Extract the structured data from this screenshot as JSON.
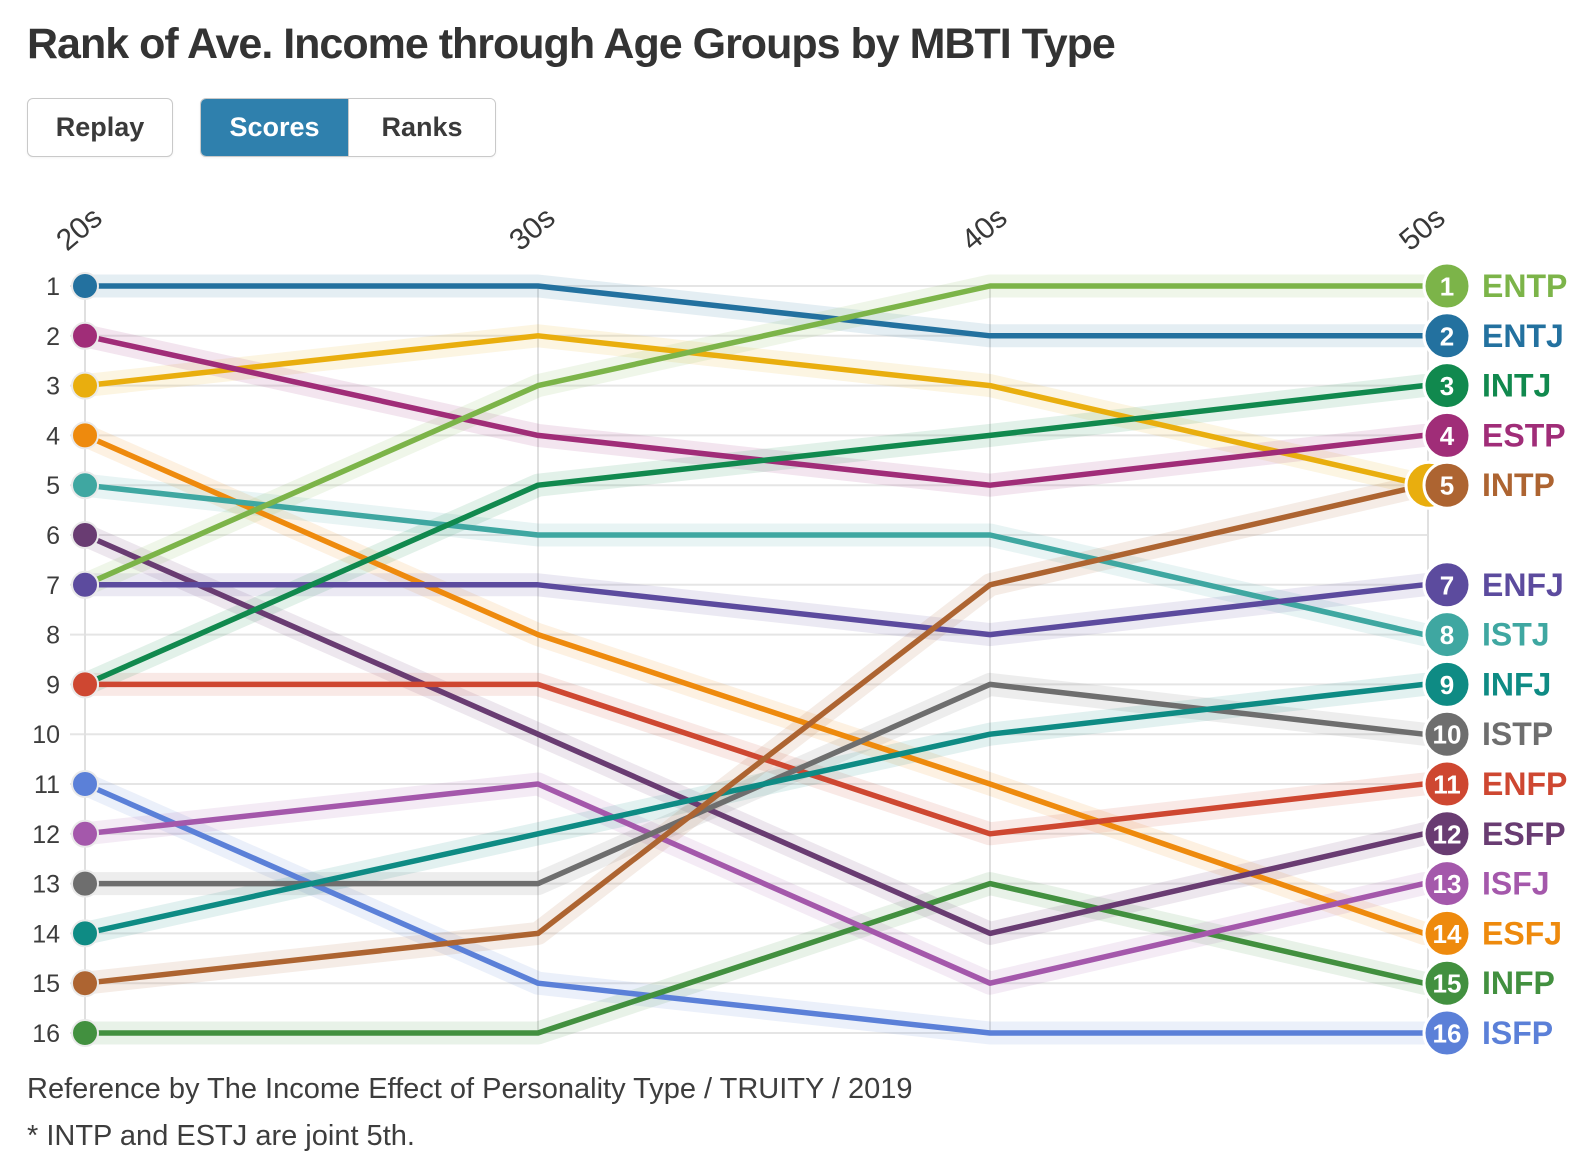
{
  "title": "Rank of Ave. Income through Age Groups by MBTI Type",
  "controls": {
    "replay": "Replay",
    "scores": "Scores",
    "ranks": "Ranks",
    "active_view": "Scores"
  },
  "footnote": {
    "reference": "Reference by The Income Effect of Personality Type / TRUITY / 2019",
    "note": "* INTP and ESTJ are joint 5th."
  },
  "chart_data": {
    "type": "line",
    "subtype": "bump-rank",
    "x": [
      "20s",
      "30s",
      "40s",
      "50s"
    ],
    "rank_axis": {
      "min": 1,
      "max": 16,
      "ticks": [
        1,
        2,
        3,
        4,
        5,
        6,
        7,
        8,
        9,
        10,
        11,
        12,
        13,
        14,
        15,
        16
      ]
    },
    "legend_position": "right",
    "grid": true,
    "series": [
      {
        "name": "ENTP",
        "color": "#7cb449",
        "ranks": [
          7,
          3,
          1,
          1
        ]
      },
      {
        "name": "ENTJ",
        "color": "#23719f",
        "ranks": [
          1,
          1,
          2,
          2
        ]
      },
      {
        "name": "INTJ",
        "color": "#11894e",
        "ranks": [
          9,
          5,
          4,
          3
        ]
      },
      {
        "name": "ESTP",
        "color": "#a02d78",
        "ranks": [
          2,
          4,
          5,
          4
        ]
      },
      {
        "name": "INTP",
        "color": "#ad6431",
        "ranks": [
          15,
          14,
          7,
          5
        ]
      },
      {
        "name": "ESTJ",
        "color": "#e9ae0e",
        "ranks": [
          3,
          2,
          3,
          5
        ],
        "badge_hidden_behind": "INTP"
      },
      {
        "name": "ENFJ",
        "color": "#5c4b9e",
        "ranks": [
          7,
          7,
          8,
          7
        ]
      },
      {
        "name": "ISTJ",
        "color": "#3fa7a1",
        "ranks": [
          5,
          6,
          6,
          8
        ]
      },
      {
        "name": "INFJ",
        "color": "#0e8b84",
        "ranks": [
          14,
          12,
          10,
          9
        ]
      },
      {
        "name": "ISTP",
        "color": "#6e6e6e",
        "ranks": [
          13,
          13,
          9,
          10
        ]
      },
      {
        "name": "ENFP",
        "color": "#ce4731",
        "ranks": [
          9,
          9,
          12,
          11
        ]
      },
      {
        "name": "ESFP",
        "color": "#693c72",
        "ranks": [
          6,
          10,
          14,
          12
        ]
      },
      {
        "name": "ISFJ",
        "color": "#a458ab",
        "ranks": [
          12,
          11,
          15,
          13
        ]
      },
      {
        "name": "ESFJ",
        "color": "#ee8a0d",
        "ranks": [
          4,
          8,
          11,
          14
        ]
      },
      {
        "name": "INFP",
        "color": "#42903f",
        "ranks": [
          16,
          16,
          13,
          15
        ]
      },
      {
        "name": "ISFP",
        "color": "#5b80d8",
        "ranks": [
          11,
          15,
          16,
          16
        ]
      }
    ],
    "ties": [
      {
        "age": "20s",
        "rank": 7,
        "types": [
          "ENTP",
          "ENFJ"
        ]
      },
      {
        "age": "20s",
        "rank": 9,
        "types": [
          "INTJ",
          "ENFP"
        ]
      },
      {
        "age": "50s",
        "rank": 5,
        "types": [
          "INTP",
          "ESTJ"
        ]
      }
    ]
  }
}
